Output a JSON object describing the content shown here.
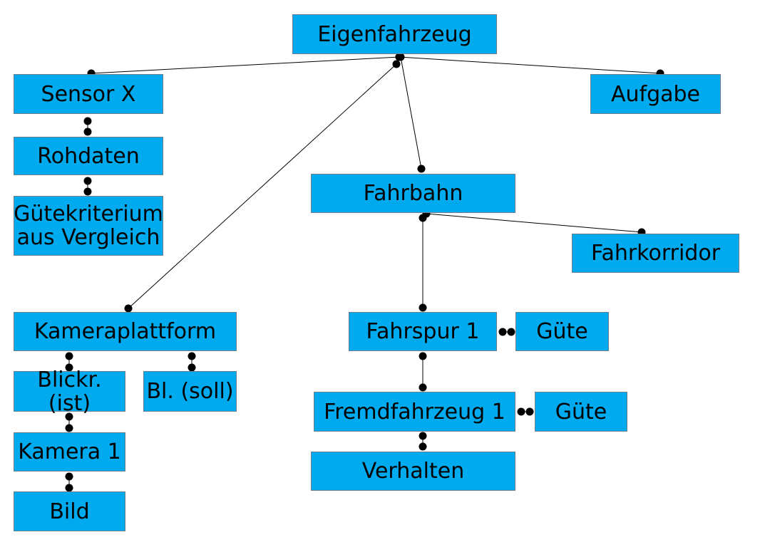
{
  "nodes": {
    "eigenfahrzeug": "Eigenfahrzeug",
    "sensor_x": "Sensor X",
    "aufgabe": "Aufgabe",
    "rohdaten": "Rohdaten",
    "guetekriterium": "Gütekriterium\naus Vergleich",
    "fahrbahn": "Fahrbahn",
    "fahrkorridor": "Fahrkorridor",
    "kameraplattform": "Kameraplattform",
    "blickr_ist": "Blickr. (ist)",
    "bl_soll": "Bl. (soll)",
    "kamera_1": "Kamera 1",
    "bild": "Bild",
    "fahrspur_1": "Fahrspur 1",
    "guete_1": "Güte",
    "fremdfahrzeug_1": "Fremdfahrzeug 1",
    "guete_2": "Güte",
    "verhalten": "Verhalten"
  },
  "edges": [
    [
      "eigenfahrzeug",
      "sensor_x"
    ],
    [
      "eigenfahrzeug",
      "aufgabe"
    ],
    [
      "eigenfahrzeug",
      "kameraplattform"
    ],
    [
      "eigenfahrzeug",
      "fahrbahn"
    ],
    [
      "sensor_x",
      "rohdaten"
    ],
    [
      "rohdaten",
      "guetekriterium"
    ],
    [
      "fahrbahn",
      "fahrkorridor"
    ],
    [
      "fahrbahn",
      "fahrspur_1"
    ],
    [
      "kameraplattform",
      "blickr_ist"
    ],
    [
      "kameraplattform",
      "bl_soll"
    ],
    [
      "blickr_ist",
      "kamera_1"
    ],
    [
      "kamera_1",
      "bild"
    ],
    [
      "fahrspur_1",
      "guete_1"
    ],
    [
      "fahrspur_1",
      "fremdfahrzeug_1"
    ],
    [
      "fremdfahrzeug_1",
      "guete_2"
    ],
    [
      "fremdfahrzeug_1",
      "verhalten"
    ]
  ],
  "colors": {
    "node_fill": "#00aaee",
    "node_border": "#6b7f8c",
    "line": "#000000",
    "background": "#ffffff"
  }
}
